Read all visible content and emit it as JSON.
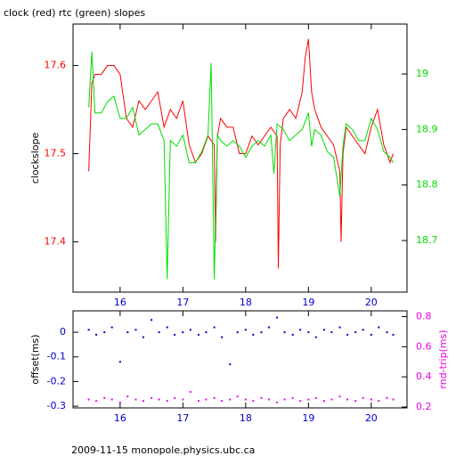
{
  "chart_data": [
    {
      "type": "line",
      "title": "clock (red) rtc (green) slopes",
      "ylabel": "clockslope",
      "xlim": [
        15.25,
        20.57
      ],
      "xticks": [
        16,
        17,
        18,
        19,
        20
      ],
      "ylim": [
        17.343,
        17.647
      ],
      "yticks": [
        17.4,
        17.5,
        17.6
      ],
      "ytick_color": "#ff0000",
      "y2lim": [
        18.607,
        19.09
      ],
      "y2ticks": [
        18.7,
        18.8,
        18.9,
        19
      ],
      "y2tick_color": "#00dd00",
      "series": [
        {
          "color": "#ff0000",
          "x": [
            15.5,
            15.55,
            15.6,
            15.7,
            15.8,
            15.9,
            16.0,
            16.1,
            16.2,
            16.3,
            16.4,
            16.5,
            16.6,
            16.7,
            16.8,
            16.9,
            17.0,
            17.1,
            17.2,
            17.3,
            17.4,
            17.5,
            17.52,
            17.55,
            17.6,
            17.7,
            17.8,
            17.9,
            18.0,
            18.1,
            18.2,
            18.3,
            18.4,
            18.5,
            18.52,
            18.55,
            18.6,
            18.7,
            18.8,
            18.9,
            18.95,
            19.0,
            19.05,
            19.1,
            19.2,
            19.3,
            19.4,
            19.5,
            19.52,
            19.55,
            19.6,
            19.7,
            19.8,
            19.9,
            20.0,
            20.1,
            20.2,
            20.3,
            20.35
          ],
          "values": [
            17.48,
            17.58,
            17.59,
            17.59,
            17.6,
            17.6,
            17.59,
            17.54,
            17.53,
            17.56,
            17.55,
            17.56,
            17.57,
            17.53,
            17.55,
            17.54,
            17.56,
            17.51,
            17.49,
            17.5,
            17.52,
            17.51,
            17.4,
            17.52,
            17.54,
            17.53,
            17.53,
            17.5,
            17.5,
            17.52,
            17.51,
            17.52,
            17.53,
            17.52,
            17.37,
            17.51,
            17.54,
            17.55,
            17.54,
            17.57,
            17.61,
            17.63,
            17.57,
            17.55,
            17.53,
            17.52,
            17.51,
            17.48,
            17.4,
            17.5,
            17.53,
            17.52,
            17.51,
            17.5,
            17.53,
            17.55,
            17.51,
            17.49,
            17.5
          ]
        },
        {
          "color": "#00dd00",
          "axis": "y2",
          "x": [
            15.5,
            15.55,
            15.6,
            15.7,
            15.8,
            15.9,
            16.0,
            16.1,
            16.2,
            16.3,
            16.4,
            16.5,
            16.6,
            16.7,
            16.75,
            16.8,
            16.9,
            17.0,
            17.1,
            17.2,
            17.3,
            17.4,
            17.45,
            17.5,
            17.55,
            17.6,
            17.7,
            17.8,
            17.9,
            18.0,
            18.1,
            18.2,
            18.3,
            18.4,
            18.45,
            18.5,
            18.6,
            18.7,
            18.8,
            18.9,
            19.0,
            19.05,
            19.1,
            19.2,
            19.3,
            19.4,
            19.5,
            19.55,
            19.6,
            19.7,
            19.8,
            19.9,
            20.0,
            20.1,
            20.2,
            20.3,
            20.35
          ],
          "values": [
            18.94,
            19.04,
            18.93,
            18.93,
            18.95,
            18.96,
            18.92,
            18.92,
            18.94,
            18.89,
            18.9,
            18.91,
            18.91,
            18.88,
            18.63,
            18.88,
            18.87,
            18.89,
            18.84,
            18.84,
            18.86,
            18.89,
            19.02,
            18.63,
            18.89,
            18.88,
            18.87,
            18.88,
            18.87,
            18.85,
            18.87,
            18.88,
            18.87,
            18.89,
            18.82,
            18.91,
            18.9,
            18.88,
            18.89,
            18.9,
            18.93,
            18.87,
            18.9,
            18.89,
            18.86,
            18.85,
            18.78,
            18.87,
            18.91,
            18.9,
            18.88,
            18.88,
            18.92,
            18.9,
            18.86,
            18.85,
            18.84
          ]
        }
      ]
    },
    {
      "type": "scatter",
      "ylabel": "offset(ms)",
      "y2label": "rnd-trip(ms)",
      "xlim": [
        15.25,
        20.57
      ],
      "xticks": [
        16,
        17,
        18,
        19,
        20
      ],
      "ylim": [
        -0.307,
        0.087
      ],
      "yticks": [
        -0.3,
        -0.2,
        -0.1,
        0
      ],
      "ytick_color": "#0000cc",
      "y2lim": [
        0.194,
        0.838
      ],
      "y2ticks": [
        0.2,
        0.4,
        0.6,
        0.8
      ],
      "y2tick_color": "#ee00ee",
      "x": [
        15.5,
        15.62,
        15.75,
        15.87,
        16.0,
        16.12,
        16.25,
        16.37,
        16.5,
        16.62,
        16.75,
        16.87,
        17.0,
        17.12,
        17.25,
        17.37,
        17.5,
        17.62,
        17.75,
        17.87,
        18.0,
        18.12,
        18.25,
        18.37,
        18.5,
        18.62,
        18.75,
        18.87,
        19.0,
        19.12,
        19.25,
        19.37,
        19.5,
        19.62,
        19.75,
        19.87,
        20.0,
        20.12,
        20.25,
        20.35
      ],
      "series": [
        {
          "color": "#0000cc",
          "values": [
            0.01,
            -0.01,
            0.0,
            0.02,
            -0.12,
            0.0,
            0.01,
            -0.02,
            0.05,
            0.0,
            0.02,
            -0.01,
            0.0,
            0.01,
            -0.01,
            0.0,
            0.02,
            -0.02,
            -0.13,
            0.0,
            0.01,
            -0.01,
            0.0,
            0.02,
            0.06,
            0.0,
            -0.01,
            0.01,
            0.0,
            -0.02,
            0.01,
            0.0,
            0.02,
            -0.01,
            0.0,
            0.01,
            -0.01,
            0.02,
            0.0,
            -0.01
          ]
        },
        {
          "color": "#ee00ee",
          "axis": "y2",
          "values": [
            0.25,
            0.24,
            0.26,
            0.25,
            0.23,
            0.27,
            0.25,
            0.24,
            0.26,
            0.25,
            0.24,
            0.26,
            0.25,
            0.3,
            0.24,
            0.25,
            0.26,
            0.24,
            0.25,
            0.27,
            0.25,
            0.24,
            0.26,
            0.25,
            0.23,
            0.25,
            0.26,
            0.24,
            0.25,
            0.26,
            0.24,
            0.25,
            0.27,
            0.25,
            0.24,
            0.26,
            0.25,
            0.24,
            0.26,
            0.25
          ]
        }
      ]
    }
  ],
  "footer": "2009-11-15 monopole.physics.ubc.ca"
}
